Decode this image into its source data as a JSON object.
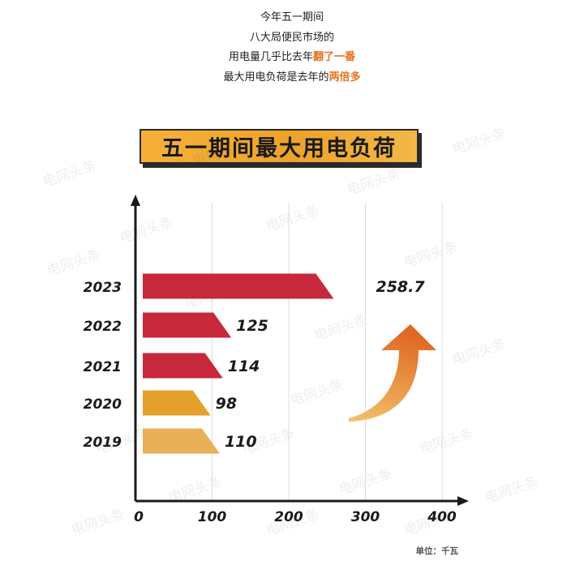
{
  "intro": {
    "line1": "今年五一期间",
    "line2": "八大局便民市场的",
    "line3_prefix": "用电量几乎比去年",
    "line3_highlight": "翻了一番",
    "line4_prefix": "最大用电负荷是去年的",
    "line4_highlight": "两倍多"
  },
  "watermark": "电网头条",
  "colors": {
    "highlight": "#e5711b",
    "title_bg": "#f0a52c",
    "arrow": "#e8822a"
  },
  "chart_data": {
    "type": "bar",
    "orientation": "horizontal",
    "title": "五一期间最大用电负荷",
    "unit_label": "单位：千瓦",
    "categories": [
      "2023",
      "2022",
      "2021",
      "2020",
      "2019"
    ],
    "values": [
      258.7,
      125,
      114,
      98,
      110
    ],
    "value_labels": [
      "258.7",
      "125",
      "114",
      "98",
      "110"
    ],
    "bar_colors": [
      "#c8283b",
      "#c8283b",
      "#c8283b",
      "#e5a12c",
      "#e9b05a"
    ],
    "xlim": [
      0,
      400
    ],
    "xticks": [
      0,
      100,
      200,
      300,
      400
    ],
    "xtick_labels": [
      "0",
      "100",
      "200",
      "300",
      "400"
    ],
    "grid": true
  }
}
